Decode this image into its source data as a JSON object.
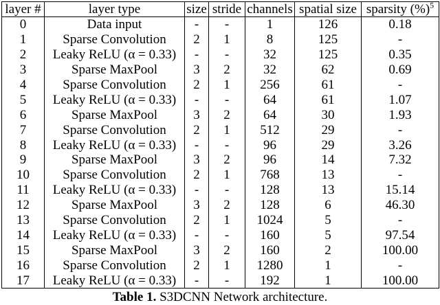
{
  "table": {
    "headers": [
      "layer #",
      "layer type",
      "size",
      "stride",
      "channels",
      "spatial size",
      "sparsity (%)"
    ],
    "sparsity_superscript": "5",
    "rows": [
      [
        "0",
        "Data input",
        "-",
        "-",
        "1",
        "126",
        "0.18"
      ],
      [
        "1",
        "Sparse Convolution",
        "2",
        "1",
        "8",
        "125",
        "-"
      ],
      [
        "2",
        "Leaky ReLU (α = 0.33)",
        "-",
        "-",
        "32",
        "125",
        "0.35"
      ],
      [
        "3",
        "Sparse MaxPool",
        "3",
        "2",
        "32",
        "62",
        "0.69"
      ],
      [
        "4",
        "Sparse Convolution",
        "2",
        "1",
        "256",
        "61",
        "-"
      ],
      [
        "5",
        "Leaky ReLU (α = 0.33)",
        "-",
        "-",
        "64",
        "61",
        "1.07"
      ],
      [
        "6",
        "Sparse MaxPool",
        "3",
        "2",
        "64",
        "30",
        "1.93"
      ],
      [
        "7",
        "Sparse Convolution",
        "2",
        "1",
        "512",
        "29",
        "-"
      ],
      [
        "8",
        "Leaky ReLU (α = 0.33)",
        "-",
        "-",
        "96",
        "29",
        "3.26"
      ],
      [
        "9",
        "Sparse MaxPool",
        "3",
        "2",
        "96",
        "14",
        "7.32"
      ],
      [
        "10",
        "Sparse Convolution",
        "2",
        "1",
        "768",
        "13",
        "-"
      ],
      [
        "11",
        "Leaky ReLU (α = 0.33)",
        "-",
        "-",
        "128",
        "13",
        "15.14"
      ],
      [
        "12",
        "Sparse MaxPool",
        "3",
        "2",
        "128",
        "6",
        "46.30"
      ],
      [
        "13",
        "Sparse Convolution",
        "2",
        "1",
        "1024",
        "5",
        "-"
      ],
      [
        "14",
        "Leaky ReLU (α = 0.33)",
        "-",
        "-",
        "160",
        "5",
        "97.54"
      ],
      [
        "15",
        "Sparse MaxPool",
        "3",
        "2",
        "160",
        "2",
        "100.00"
      ],
      [
        "16",
        "Sparse Convolution",
        "2",
        "1",
        "1280",
        "1",
        "-"
      ],
      [
        "17",
        "Leaky ReLU (α = 0.33)",
        "-",
        "-",
        "192",
        "1",
        "100.00"
      ]
    ]
  },
  "caption": {
    "label": "Table 1.",
    "text": " S3DCNN Network architecture."
  },
  "colors": {
    "text": "#000000",
    "background": "#ffffff",
    "border": "#000000"
  }
}
